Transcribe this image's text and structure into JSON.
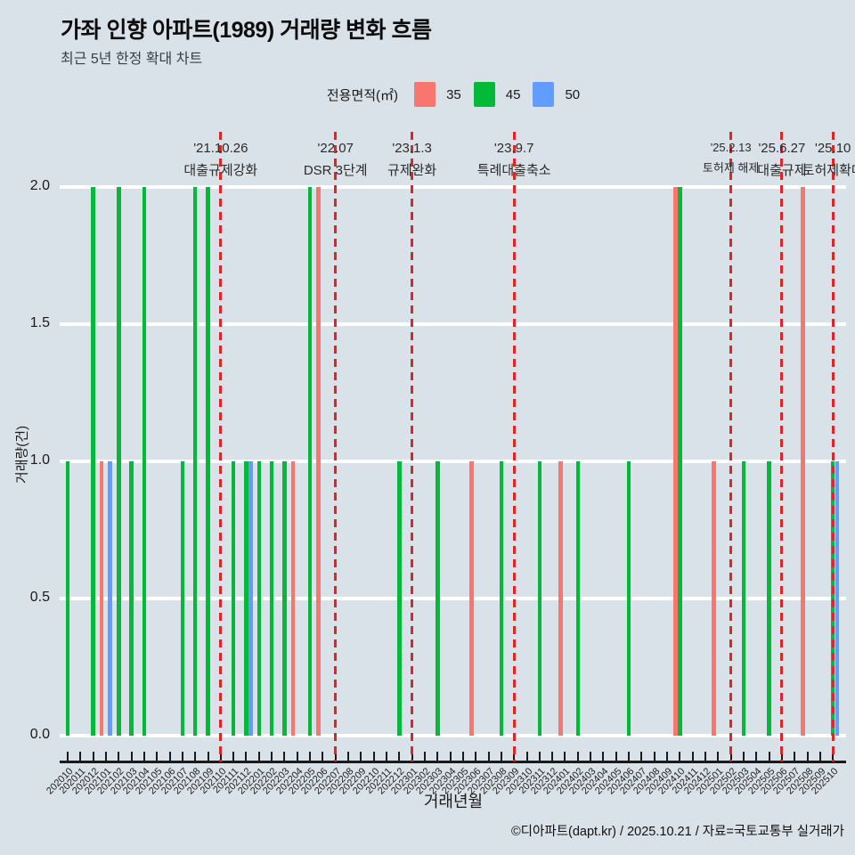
{
  "page": {
    "footer": "©디아파트(dapt.kr) / 2025.10.21 / 자료=국토교통부 실거래가"
  },
  "colors": {
    "background": "#d9e2e8",
    "grid": "#ffffff",
    "axis": "#1a1a1a",
    "event_line": "#e02525"
  },
  "chart_data": {
    "type": "bar",
    "title": "가좌 인향 아파트(1989) 거래량 변화 흐름",
    "subtitle": "최근 5년 한정 확대 차트",
    "legend_title": "전용면적(㎡)",
    "legend_position": "top",
    "grid": true,
    "xlabel": "거래년월",
    "ylabel": "거래량(건)",
    "ylim": [
      0,
      2
    ],
    "yticks": [
      "0.0",
      "0.5",
      "1.0",
      "1.5",
      "2.0"
    ],
    "categories": [
      "202010",
      "202011",
      "202012",
      "202101",
      "202102",
      "202103",
      "202104",
      "202105",
      "202106",
      "202107",
      "202108",
      "202109",
      "202110",
      "202111",
      "202112",
      "202201",
      "202202",
      "202203",
      "202204",
      "202205",
      "202206",
      "202207",
      "202208",
      "202209",
      "202210",
      "202211",
      "202212",
      "202301",
      "202302",
      "202303",
      "202304",
      "202305",
      "202306",
      "202307",
      "202308",
      "202309",
      "202310",
      "202311",
      "202312",
      "202401",
      "202402",
      "202403",
      "202404",
      "202405",
      "202406",
      "202407",
      "202408",
      "202409",
      "202410",
      "202411",
      "202412",
      "202501",
      "202502",
      "202503",
      "202504",
      "202505",
      "202506",
      "202507",
      "202508",
      "202509",
      "202510"
    ],
    "series": [
      {
        "name": "35",
        "color": "#F8766D",
        "values": {
          "202101": 1,
          "202204": 1,
          "202206": 2,
          "202306": 1,
          "202401": 1,
          "202410": 2,
          "202501": 1,
          "202508": 2
        }
      },
      {
        "name": "45",
        "color": "#00BA38",
        "values": {
          "202010": 1,
          "202012": 2,
          "202102": 2,
          "202103": 1,
          "202104": 2,
          "202107": 1,
          "202108": 2,
          "202109": 2,
          "202111": 1,
          "202112": 1,
          "202201": 1,
          "202202": 1,
          "202203": 1,
          "202205": 2,
          "202212": 1,
          "202303": 1,
          "202308": 1,
          "202311": 1,
          "202402": 1,
          "202406": 1,
          "202410": 2,
          "202503": 1,
          "202505": 1,
          "202510": 1
        }
      },
      {
        "name": "50",
        "color": "#619CFF",
        "values": {
          "202101": 1,
          "202112": 1,
          "202510": 1
        }
      }
    ],
    "annotations": [
      {
        "category": "202110",
        "date": "'21.10.26",
        "label": "대출규제강화",
        "size": "normal"
      },
      {
        "category": "202207",
        "date": "'22.07",
        "label": "DSR 3단계",
        "size": "normal"
      },
      {
        "category": "202301",
        "date": "'23.1.3",
        "label": "규제완화",
        "size": "normal"
      },
      {
        "category": "202309",
        "date": "'23.9.7",
        "label": "특례대출축소",
        "size": "normal"
      },
      {
        "category": "202502",
        "date": "'25.2.13",
        "label": "토허제 해제",
        "size": "small"
      },
      {
        "category": "202506",
        "date": "'25.6.27",
        "label": "대출규제",
        "size": "normal"
      },
      {
        "category": "202510",
        "date": "'25.10",
        "label": "토허제확대",
        "size": "normal"
      }
    ]
  }
}
